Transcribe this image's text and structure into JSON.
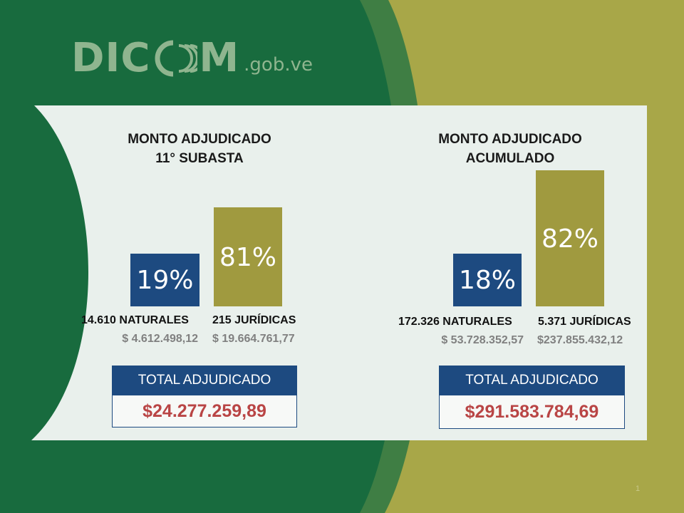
{
  "logo": {
    "main_left": "DIC",
    "main_right": "M",
    "suffix": ".gob.ve"
  },
  "left": {
    "title_line1": "MONTO ADJUDICADO",
    "title_line2": "11° SUBASTA",
    "naturales": {
      "pct": "19%",
      "label": "14.610 NATURALES",
      "amount": "$ 4.612.498,12"
    },
    "juridicas": {
      "pct": "81%",
      "label": "215 JURÍDICAS",
      "amount": "$ 19.664.761,77"
    },
    "total_label": "TOTAL ADJUDICADO",
    "total_value": "$24.277.259,89"
  },
  "right": {
    "title_line1": "MONTO ADJUDICADO",
    "title_line2": "ACUMULADO",
    "naturales": {
      "pct": "18%",
      "label": "172.326 NATURALES",
      "amount": "$ 53.728.352,57"
    },
    "juridicas": {
      "pct": "82%",
      "label": "5.371 JURÍDICAS",
      "amount": "$237.855.432,12"
    },
    "total_label": "TOTAL ADJUDICADO",
    "total_value": "$291.583.784,69"
  },
  "page_number": "1",
  "colors": {
    "dark_green": "#186b3e",
    "olive": "#a8a748",
    "bar_blue": "#1d4a80",
    "bar_olive": "#a09a3f",
    "total_red": "#b94545"
  }
}
